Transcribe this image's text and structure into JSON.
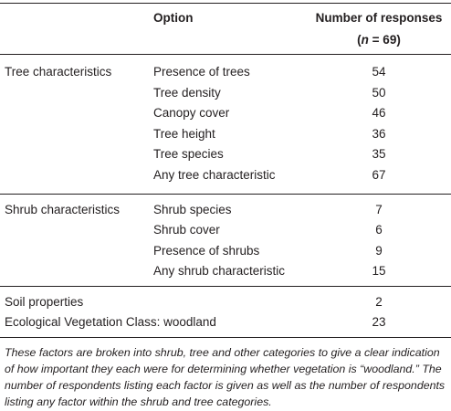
{
  "header": {
    "option": "Option",
    "responses_line1": "Number of responses",
    "responses_n_symbol": "n",
    "responses_n_rest": " = 69)",
    "responses_open": "("
  },
  "groups": [
    {
      "category": "Tree characteristics",
      "rows": [
        {
          "option": "Presence of trees",
          "value": "54"
        },
        {
          "option": "Tree density",
          "value": "50"
        },
        {
          "option": "Canopy cover",
          "value": "46"
        },
        {
          "option": "Tree height",
          "value": "36"
        },
        {
          "option": "Tree species",
          "value": "35"
        },
        {
          "option": "Any tree characteristic",
          "value": "67"
        }
      ]
    },
    {
      "category": "Shrub characteristics",
      "rows": [
        {
          "option": "Shrub species",
          "value": "7"
        },
        {
          "option": "Shrub cover",
          "value": "6"
        },
        {
          "option": "Presence of shrubs",
          "value": "9"
        },
        {
          "option": "Any shrub characteristic",
          "value": "15"
        }
      ]
    },
    {
      "category": "Soil properties",
      "rows": [
        {
          "option": "",
          "value": "2"
        }
      ]
    },
    {
      "category": "Ecological Vegetation Class: woodland",
      "rows": [
        {
          "option": "",
          "value": "23"
        }
      ]
    }
  ],
  "footnote": "These factors are broken into shrub, tree and other categories to give a clear indication of how important they each were for determining whether vegetation is “woodland.” The number of respondents listing each factor is given as well as the number of respondents listing any factor within the shrub and tree categories."
}
